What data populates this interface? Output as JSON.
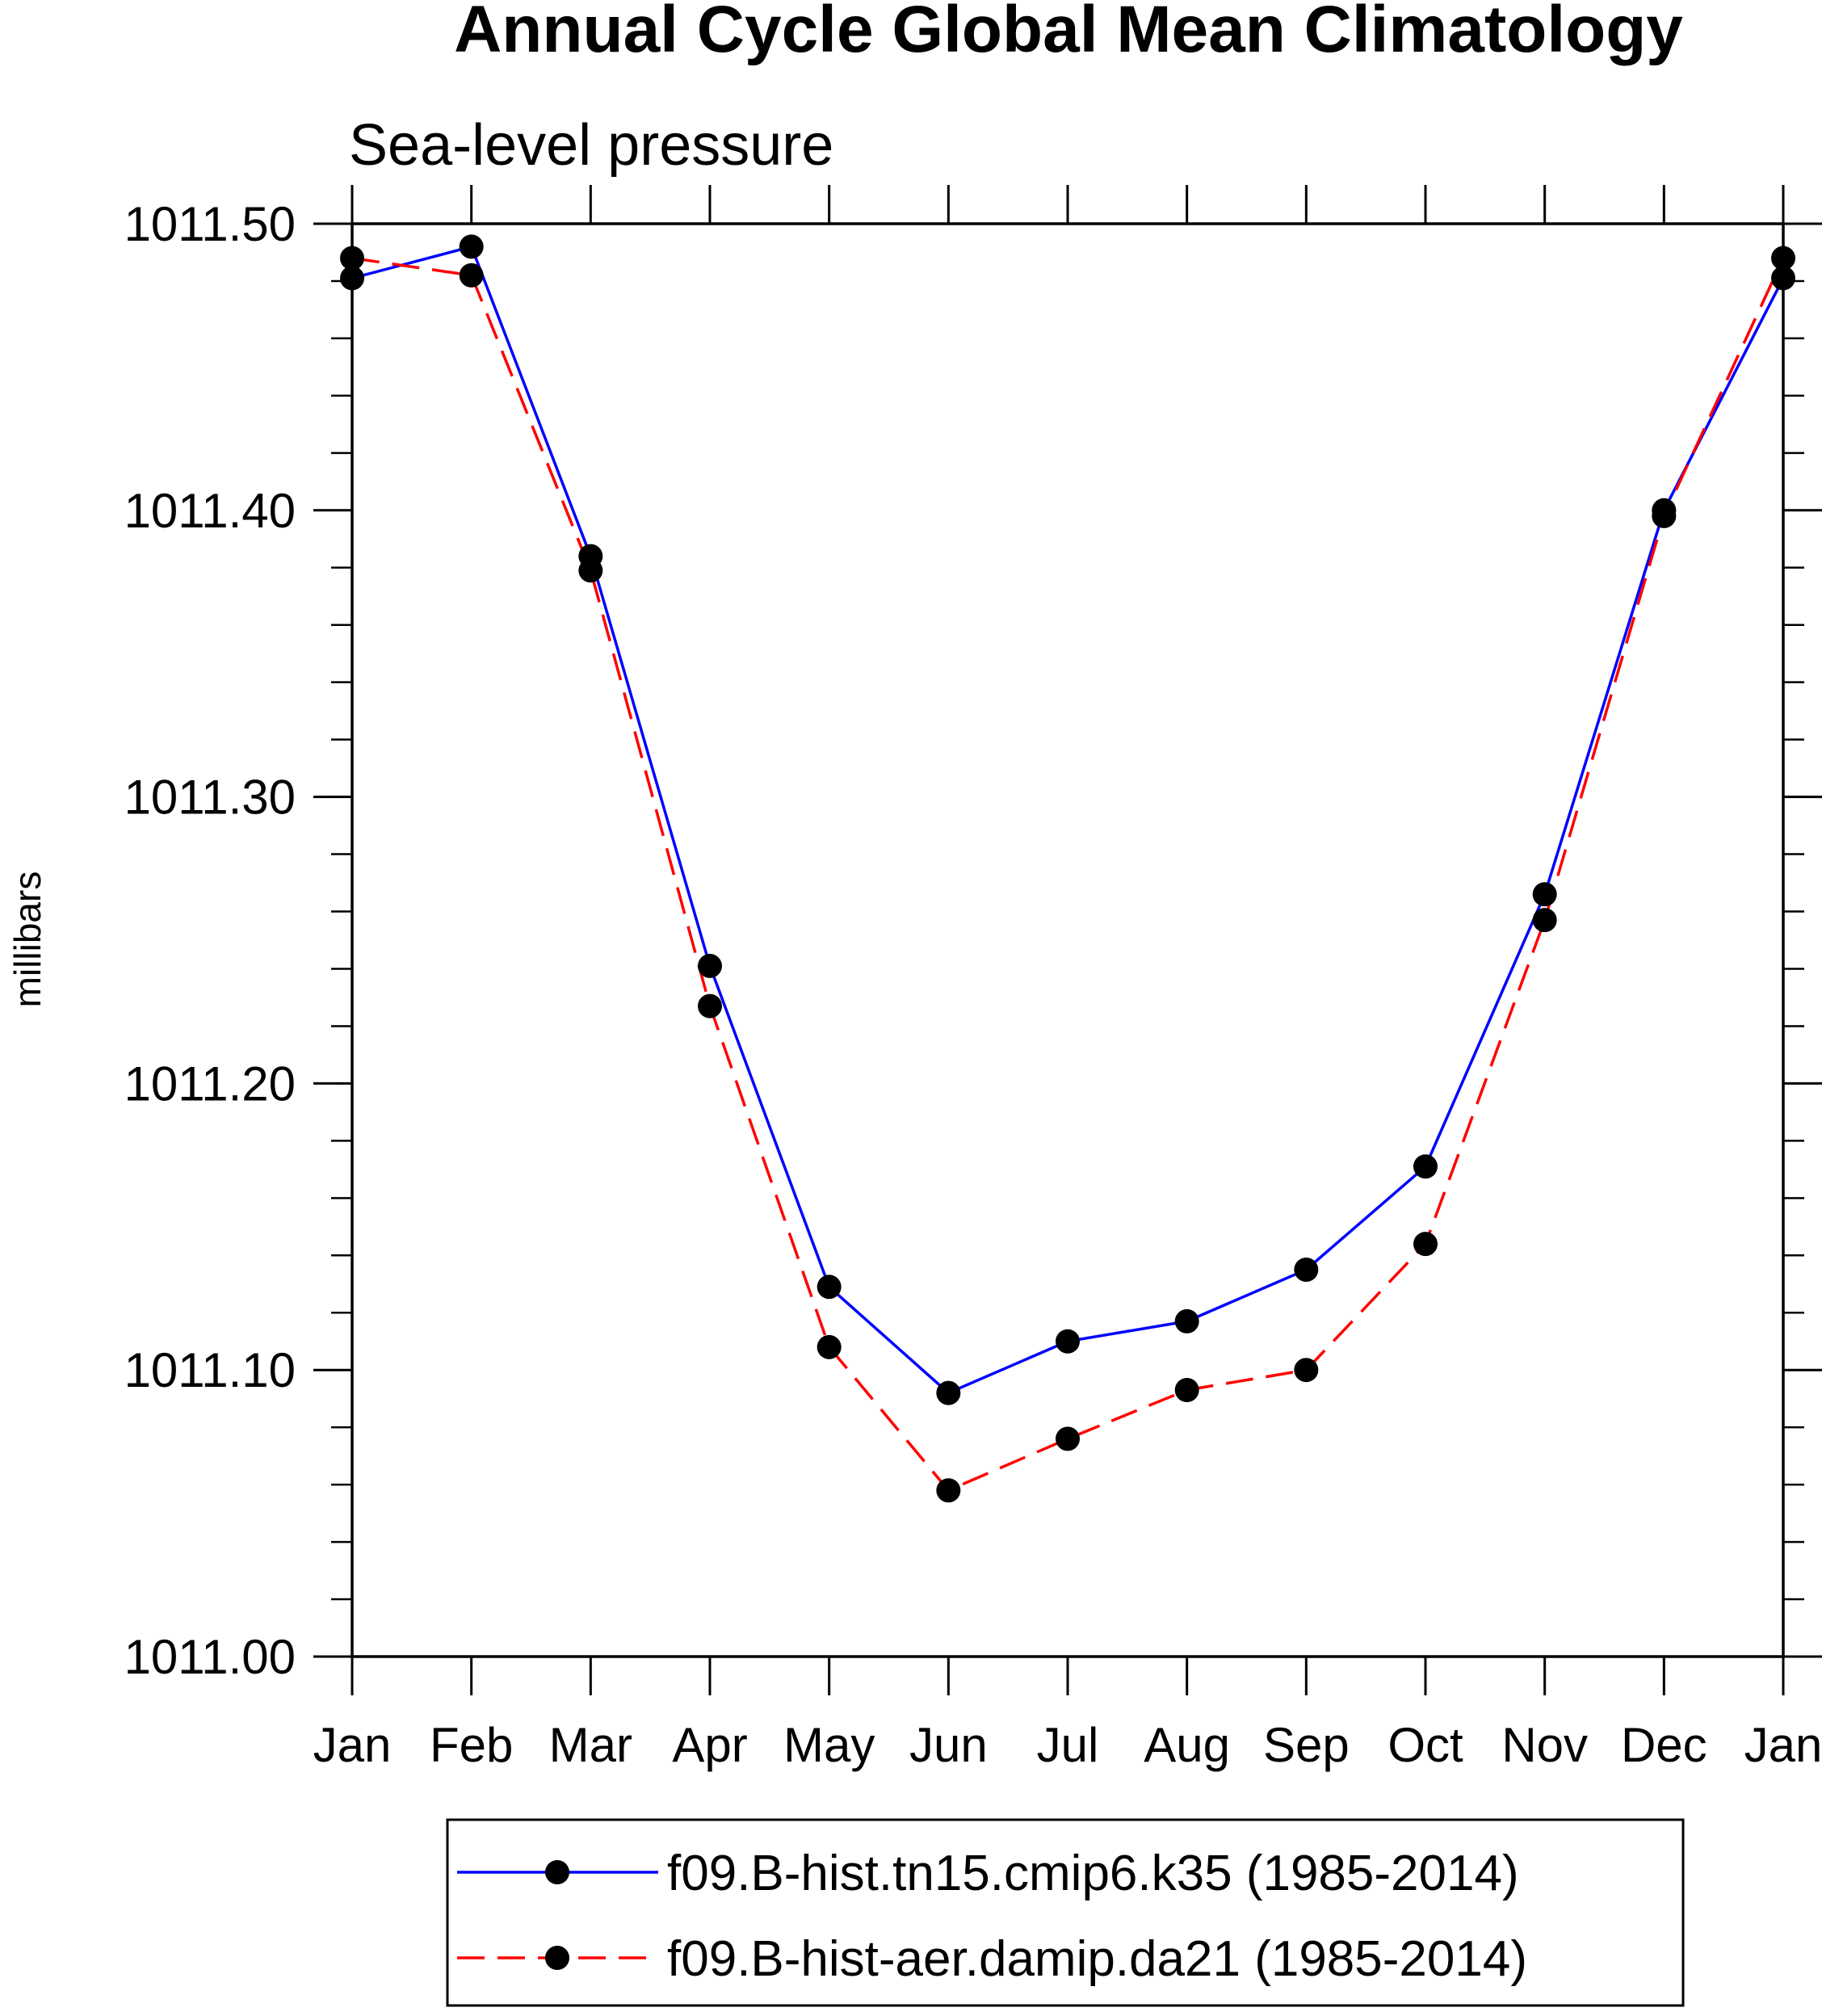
{
  "chart_data": {
    "type": "line",
    "title": "Annual Cycle Global Mean Climatology",
    "subtitle": "Sea-level pressure",
    "xlabel": "",
    "ylabel": "millibars",
    "categories": [
      "Jan",
      "Feb",
      "Mar",
      "Apr",
      "May",
      "Jun",
      "Jul",
      "Aug",
      "Sep",
      "Oct",
      "Nov",
      "Dec",
      "Jan"
    ],
    "ylim": [
      1011.0,
      1011.5
    ],
    "yticks": [
      "1011.00",
      "1011.10",
      "1011.20",
      "1011.30",
      "1011.40",
      "1011.50"
    ],
    "ytick_values": [
      1011.0,
      1011.1,
      1011.2,
      1011.3,
      1011.4,
      1011.5
    ],
    "yminor_step": 0.02,
    "grid": false,
    "legend_position": "bottom-center",
    "series": [
      {
        "name": "f09.B-hist.tn15.cmip6.k35 (1985-2014)",
        "color": "#0000ff",
        "dash": "solid",
        "marker": "filled-circle",
        "values": [
          1011.481,
          1011.492,
          1011.384,
          1011.241,
          1011.129,
          1011.092,
          1011.11,
          1011.117,
          1011.135,
          1011.171,
          1011.266,
          1011.4,
          1011.481
        ]
      },
      {
        "name": "f09.B-hist-aer.damip.da21 (1985-2014)",
        "color": "#ff0000",
        "dash": "dashed",
        "marker": "filled-circle",
        "values": [
          1011.488,
          1011.482,
          1011.379,
          1011.227,
          1011.108,
          1011.058,
          1011.076,
          1011.093,
          1011.1,
          1011.144,
          1011.257,
          1011.398,
          1011.488
        ]
      }
    ]
  }
}
